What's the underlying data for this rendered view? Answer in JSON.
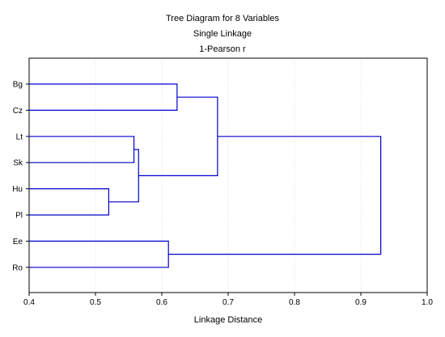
{
  "chart_data": {
    "type": "dendrogram",
    "title_lines": [
      "Tree Diagram for 8   Variables",
      "Single Linkage",
      "1-Pearson r"
    ],
    "xlabel": "Linkage Distance",
    "xlim": [
      0.4,
      1.0
    ],
    "xticks": [
      0.4,
      0.5,
      0.6,
      0.7,
      0.8,
      0.9,
      1.0
    ],
    "grid": true,
    "leaves": [
      "Bg",
      "Cz",
      "Lt",
      "Sk",
      "Hu",
      "Pl",
      "Ee",
      "Ro"
    ],
    "merges": [
      {
        "left": "Hu",
        "right": "Pl",
        "distance": 0.52
      },
      {
        "left": "Lt",
        "right": "Sk",
        "distance": 0.558
      },
      {
        "left": "(Lt,Sk)",
        "right": "(Hu,Pl)",
        "distance": 0.565
      },
      {
        "left": "Ee",
        "right": "Ro",
        "distance": 0.61
      },
      {
        "left": "Bg",
        "right": "Cz",
        "distance": 0.623
      },
      {
        "left": "(Bg,Cz)",
        "right": "(Lt,Sk,Hu,Pl)",
        "distance": 0.684
      },
      {
        "left": "(Bg,Cz,Lt,Sk,Hu,Pl)",
        "right": "(Ee,Ro)",
        "distance": 0.93
      }
    ]
  }
}
